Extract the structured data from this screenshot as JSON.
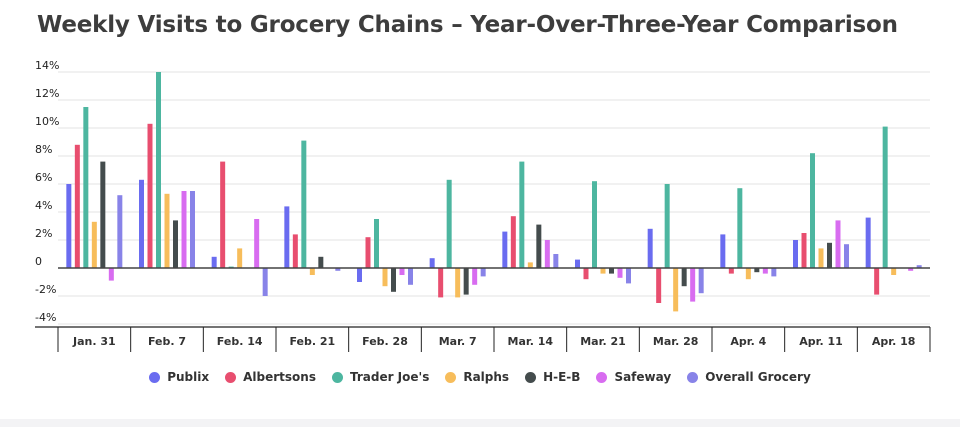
{
  "chart_data": {
    "type": "bar",
    "title": "Weekly Visits to Grocery Chains – Year-Over-Three-Year Comparison",
    "xlabel": "",
    "ylabel": "",
    "ylim": [
      -4.5,
      14
    ],
    "yticks": [
      14,
      12,
      10,
      8,
      6,
      4,
      2,
      0,
      -2,
      -4
    ],
    "ytick_labels": [
      "14%",
      "12%",
      "10%",
      "8%",
      "6%",
      "4%",
      "2%",
      "0",
      "-2%",
      "-4%"
    ],
    "grid": true,
    "legend_position": "bottom",
    "categories": [
      "Jan. 31",
      "Feb. 7",
      "Feb. 14",
      "Feb. 21",
      "Feb. 28",
      "Mar. 7",
      "Mar. 14",
      "Mar. 21",
      "Mar. 28",
      "Apr. 4",
      "Apr. 11",
      "Apr. 18"
    ],
    "series": [
      {
        "name": "Publix",
        "color": "#6a6cf0",
        "values": [
          6.0,
          6.3,
          0.8,
          4.4,
          -1.0,
          0.7,
          2.6,
          0.6,
          2.8,
          2.4,
          2.0,
          3.6
        ]
      },
      {
        "name": "Albertsons",
        "color": "#e84e6f",
        "values": [
          8.8,
          10.3,
          7.6,
          2.4,
          2.2,
          -2.1,
          3.7,
          -0.8,
          -2.5,
          -0.4,
          2.5,
          -1.9
        ]
      },
      {
        "name": "Trader Joe's",
        "color": "#4db6a0",
        "values": [
          11.5,
          14.0,
          0.1,
          9.1,
          3.5,
          6.3,
          7.6,
          6.2,
          6.0,
          5.7,
          8.2,
          10.1
        ]
      },
      {
        "name": "Ralphs",
        "color": "#f7bd5b",
        "values": [
          3.3,
          5.3,
          1.4,
          -0.5,
          -1.3,
          -2.1,
          0.4,
          -0.4,
          -3.1,
          -0.8,
          1.4,
          -0.5
        ]
      },
      {
        "name": "H-E-B",
        "color": "#444c4d",
        "values": [
          7.6,
          3.4,
          0.0,
          0.8,
          -1.7,
          -1.9,
          3.1,
          -0.4,
          -1.3,
          -0.3,
          1.8,
          0.0
        ]
      },
      {
        "name": "Safeway",
        "color": "#d86cf0",
        "values": [
          -0.9,
          5.5,
          3.5,
          0.0,
          -0.5,
          -1.2,
          2.0,
          -0.7,
          -2.4,
          -0.4,
          3.4,
          -0.2
        ]
      },
      {
        "name": "Overall Grocery",
        "color": "#8883e8",
        "values": [
          5.2,
          5.5,
          -2.0,
          -0.2,
          -1.2,
          -0.6,
          1.0,
          -1.1,
          -1.8,
          -0.6,
          1.7,
          0.2
        ]
      }
    ]
  }
}
